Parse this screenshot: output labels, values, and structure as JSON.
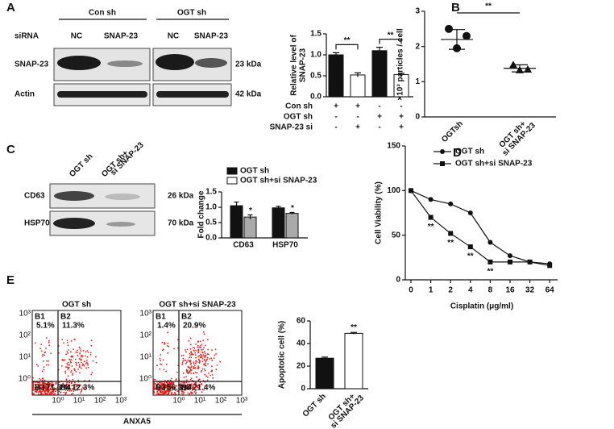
{
  "panel_labels": [
    "A",
    "B",
    "C",
    "D",
    "E"
  ],
  "blot_a": {
    "siRNA_label": "siRNA",
    "groups": [
      "Con sh",
      "OGT sh"
    ],
    "lanes": [
      "NC",
      "SNAP-23",
      "NC",
      "SNAP-23"
    ],
    "rows": [
      "SNAP-23",
      "Actin"
    ],
    "sizes": [
      "23 kDa",
      "42 kDa"
    ]
  },
  "blot_c": {
    "lanes": [
      [
        "OGT sh"
      ],
      [
        "OGT sh+",
        "si SNAP-23"
      ]
    ],
    "rows": [
      "CD63",
      "HSP70"
    ],
    "sizes": [
      "26 kDa",
      "70 kDa"
    ]
  },
  "flow": {
    "axis_label": "ANXA5",
    "yticks": [
      "10³",
      "10²",
      "10¹",
      "10⁰"
    ],
    "xticks": [
      "10⁰",
      "10¹",
      "10²",
      "10³"
    ],
    "plots": [
      {
        "title": "OGT sh",
        "quadrants": [
          [
            "B1",
            "5.1%"
          ],
          [
            "B2",
            "11.3%"
          ],
          [
            "B3",
            "71.3%"
          ],
          [
            "B4",
            "12.3%"
          ]
        ]
      },
      {
        "title": "OGT sh+si SNAP-23",
        "quadrants": [
          [
            "B1",
            "1.4%"
          ],
          [
            "B2",
            "20.9%"
          ],
          [
            "B3",
            "56.3%"
          ],
          [
            "B4",
            "21.4%"
          ]
        ]
      }
    ]
  },
  "chart_data": [
    {
      "type": "bar",
      "ylabel": [
        "Relative level of",
        "SNAP-23"
      ],
      "values": [
        1.0,
        0.52,
        1.1,
        0.53
      ],
      "errors": [
        0.05,
        0.05,
        0.08,
        0.03
      ],
      "colors": [
        "#111111",
        "#ffffff",
        "#111111",
        "#ffffff"
      ],
      "ylim": [
        0,
        1.5
      ],
      "yticks": [
        {
          "value": 0,
          "label": "0.0"
        },
        {
          "value": 0.5,
          "label": "0.5"
        },
        {
          "value": 1,
          "label": "1.0"
        },
        {
          "value": 1.5,
          "label": "1.5"
        }
      ],
      "annotations": [
        "**",
        "**"
      ],
      "conditions": [
        {
          "name": "Con sh",
          "marks": [
            "+",
            "+",
            "-",
            "-"
          ]
        },
        {
          "name": "OGT sh",
          "marks": [
            "-",
            "-",
            "+",
            "+"
          ]
        },
        {
          "name": "SNAP-23 si",
          "marks": [
            "-",
            "+",
            "-",
            "+"
          ]
        }
      ]
    },
    {
      "type": "dot",
      "ylabel": "×10³ particles / cell",
      "categories": [
        [
          "OGTsh"
        ],
        [
          "OGT sh+",
          "si SNAP-23"
        ]
      ],
      "points": [
        [
          2.5,
          2.3,
          1.95
        ],
        [
          1.48,
          1.35,
          1.33
        ]
      ],
      "means": [
        2.2,
        1.38
      ],
      "errors": [
        0.28,
        0.1
      ],
      "ylim": [
        0,
        3
      ],
      "yticks": [
        0,
        1,
        2,
        3
      ],
      "annotations": [
        "**"
      ]
    },
    {
      "type": "grouped-bar",
      "ylabel": "Fold change",
      "categories": [
        "CD63",
        "HSP70"
      ],
      "series": [
        {
          "name": "OGT sh",
          "color": "#111111",
          "values": [
            1.05,
            0.98
          ],
          "errors": [
            0.12,
            0.05
          ]
        },
        {
          "name": "OGT sh+si SNAP-23",
          "color": "#aaaaaa",
          "values": [
            0.68,
            0.8
          ],
          "errors": [
            0.07,
            0.03
          ]
        }
      ],
      "ylim": [
        0,
        1.5
      ],
      "yticks": [
        {
          "value": 0,
          "label": "0.0"
        },
        {
          "value": 0.5,
          "label": "0.5"
        },
        {
          "value": 1,
          "label": "1.0"
        },
        {
          "value": 1.5,
          "label": "1.5"
        }
      ],
      "annotations": [
        "*",
        "*"
      ]
    },
    {
      "type": "line",
      "ylabel": "Cell Viability (%)",
      "xlabel": "Cisplatin (μg/ml)",
      "categories": [
        "0",
        "1",
        "2",
        "4",
        "8",
        "16",
        "32",
        "64"
      ],
      "series": [
        {
          "name": "OGT sh",
          "color": "#111111",
          "values": [
            100,
            90,
            85,
            75,
            42,
            27,
            20,
            18
          ]
        },
        {
          "name": "OGT sh+si SNAP-23",
          "color": "#111111",
          "values": [
            100,
            70,
            52,
            37,
            20,
            20,
            20,
            16
          ]
        }
      ],
      "ylim": [
        0,
        150
      ],
      "yticks": [
        0,
        50,
        100,
        150
      ],
      "annotations": [
        "**",
        "**",
        "**",
        "**"
      ]
    },
    {
      "type": "bar",
      "ylabel": "Apoptotic cell (%)",
      "categories": [
        [
          "OGT sh"
        ],
        [
          "OGT sh+",
          "si SNAP-23"
        ]
      ],
      "values": [
        27,
        49
      ],
      "errors": [
        1,
        0.8
      ],
      "colors": [
        "#111111",
        "#ffffff"
      ],
      "ylim": [
        0,
        60
      ],
      "yticks": [
        0,
        20,
        40,
        60
      ],
      "annotations": [
        "**"
      ]
    }
  ]
}
